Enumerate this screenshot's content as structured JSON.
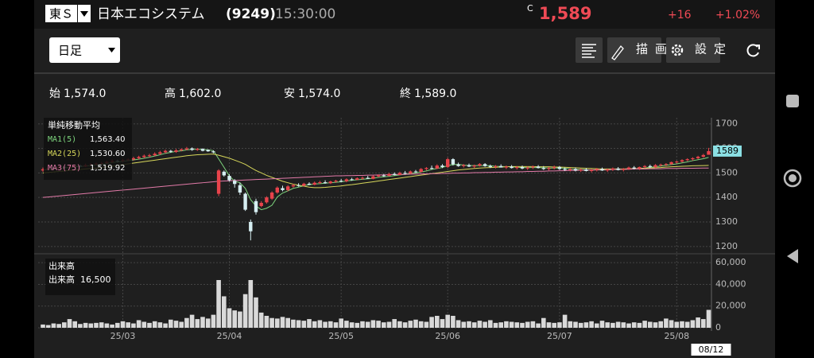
{
  "header": {
    "market": "東Ｓ",
    "name": "日本エコシステム",
    "code": "(9249)",
    "time": "15:30:00",
    "price_flag": "C",
    "price": "1,589",
    "change": "+16",
    "change_pct": "+1.02%"
  },
  "toolbar": {
    "period": "日足",
    "draw": "描画",
    "settings": "設定"
  },
  "summary": [
    {
      "label": "始",
      "value": "1,574.0"
    },
    {
      "label": "高",
      "value": "1,602.0"
    },
    {
      "label": "安",
      "value": "1,574.0"
    },
    {
      "label": "終",
      "value": "1,589.0"
    }
  ],
  "chart_data": [
    {
      "type": "candlestick",
      "legend_title": "単純移動平均",
      "up_color": "#e8434b",
      "down_color": "#d6eef2",
      "categories": [
        null,
        null,
        null,
        null,
        null,
        null,
        null,
        null,
        null,
        null,
        null,
        null,
        null,
        null,
        null,
        "25/03",
        null,
        null,
        null,
        null,
        null,
        null,
        null,
        null,
        null,
        null,
        null,
        null,
        null,
        null,
        null,
        null,
        null,
        null,
        null,
        "25/04",
        null,
        null,
        null,
        null,
        null,
        null,
        null,
        null,
        null,
        null,
        null,
        null,
        null,
        null,
        null,
        null,
        null,
        null,
        null,
        null,
        "25/05",
        null,
        null,
        null,
        null,
        null,
        null,
        null,
        null,
        null,
        null,
        null,
        null,
        null,
        null,
        null,
        null,
        null,
        null,
        null,
        "25/06",
        null,
        null,
        null,
        null,
        null,
        null,
        null,
        null,
        null,
        null,
        null,
        null,
        null,
        null,
        null,
        null,
        null,
        null,
        null,
        null,
        "25/07",
        null,
        null,
        null,
        null,
        null,
        null,
        null,
        null,
        null,
        null,
        null,
        null,
        null,
        null,
        null,
        null,
        null,
        null,
        null,
        null,
        null,
        "25/08",
        null,
        null,
        null,
        null,
        null,
        "08/12"
      ],
      "open": [
        1510,
        1515,
        1520,
        1518,
        1525,
        1522,
        1528,
        1530,
        1526,
        1532,
        1535,
        1538,
        1540,
        1545,
        1550,
        1548,
        1552,
        1555,
        1560,
        1565,
        1570,
        1572,
        1578,
        1584,
        1590,
        1586,
        1592,
        1596,
        1600,
        1594,
        1598,
        1594,
        1588,
        1415,
        1505,
        1488,
        1468,
        1450,
        1415,
        1300,
        1385,
        1365,
        1380,
        1395,
        1420,
        1438,
        1430,
        1445,
        1450,
        1448,
        1456,
        1452,
        1460,
        1462,
        1458,
        1465,
        1468,
        1466,
        1474,
        1472,
        1478,
        1480,
        1476,
        1486,
        1490,
        1488,
        1496,
        1492,
        1500,
        1498,
        1506,
        1504,
        1516,
        1520,
        1518,
        1530,
        1524,
        1556,
        1535,
        1528,
        1532,
        1526,
        1530,
        1536,
        1528,
        1524,
        1528,
        1522,
        1526,
        1520,
        1524,
        1518,
        1522,
        1526,
        1520,
        1516,
        1520,
        1524,
        1516,
        1512,
        1516,
        1510,
        1514,
        1508,
        1512,
        1516,
        1510,
        1514,
        1518,
        1512,
        1516,
        1522,
        1518,
        1524,
        1528,
        1524,
        1532,
        1534,
        1536,
        1544,
        1546,
        1552,
        1556,
        1560,
        1566,
        1574
      ],
      "high": [
        1522,
        1525,
        1524,
        1530,
        1528,
        1532,
        1535,
        1534,
        1538,
        1540,
        1542,
        1545,
        1550,
        1556,
        1554,
        1558,
        1560,
        1566,
        1570,
        1575,
        1578,
        1584,
        1590,
        1595,
        1594,
        1598,
        1600,
        1606,
        1604,
        1602,
        1600,
        1596,
        1592,
        1515,
        1510,
        1495,
        1475,
        1460,
        1420,
        1310,
        1395,
        1385,
        1405,
        1425,
        1445,
        1448,
        1450,
        1455,
        1458,
        1460,
        1462,
        1465,
        1468,
        1470,
        1468,
        1472,
        1475,
        1478,
        1480,
        1482,
        1485,
        1488,
        1490,
        1494,
        1496,
        1500,
        1502,
        1505,
        1508,
        1510,
        1512,
        1520,
        1524,
        1530,
        1535,
        1536,
        1562,
        1560,
        1542,
        1536,
        1538,
        1534,
        1540,
        1540,
        1534,
        1532,
        1535,
        1530,
        1532,
        1528,
        1530,
        1526,
        1530,
        1532,
        1528,
        1524,
        1530,
        1528,
        1522,
        1520,
        1522,
        1518,
        1520,
        1516,
        1520,
        1522,
        1518,
        1522,
        1524,
        1520,
        1526,
        1528,
        1526,
        1532,
        1534,
        1536,
        1538,
        1540,
        1546,
        1550,
        1556,
        1560,
        1564,
        1570,
        1578,
        1602
      ],
      "low": [
        1505,
        1512,
        1512,
        1515,
        1518,
        1520,
        1524,
        1522,
        1524,
        1528,
        1530,
        1534,
        1536,
        1540,
        1542,
        1544,
        1548,
        1550,
        1555,
        1560,
        1564,
        1568,
        1574,
        1580,
        1582,
        1582,
        1588,
        1592,
        1590,
        1590,
        1588,
        1586,
        1580,
        1405,
        1485,
        1465,
        1440,
        1410,
        1345,
        1225,
        1330,
        1360,
        1375,
        1390,
        1415,
        1425,
        1425,
        1440,
        1444,
        1445,
        1450,
        1450,
        1455,
        1456,
        1455,
        1460,
        1462,
        1462,
        1468,
        1470,
        1472,
        1476,
        1474,
        1482,
        1484,
        1486,
        1490,
        1490,
        1494,
        1495,
        1500,
        1502,
        1510,
        1514,
        1516,
        1520,
        1520,
        1530,
        1525,
        1522,
        1524,
        1520,
        1526,
        1525,
        1520,
        1518,
        1522,
        1516,
        1518,
        1514,
        1515,
        1512,
        1516,
        1518,
        1512,
        1510,
        1514,
        1512,
        1508,
        1506,
        1506,
        1504,
        1506,
        1502,
        1506,
        1508,
        1504,
        1508,
        1510,
        1506,
        1512,
        1514,
        1512,
        1518,
        1520,
        1520,
        1526,
        1528,
        1532,
        1538,
        1542,
        1548,
        1550,
        1556,
        1562,
        1574
      ],
      "close": [
        1515,
        1520,
        1518,
        1525,
        1522,
        1528,
        1530,
        1526,
        1532,
        1535,
        1538,
        1540,
        1545,
        1550,
        1548,
        1552,
        1555,
        1560,
        1565,
        1570,
        1572,
        1578,
        1584,
        1590,
        1586,
        1592,
        1596,
        1600,
        1594,
        1598,
        1590,
        1588,
        1584,
        1510,
        1490,
        1470,
        1455,
        1420,
        1350,
        1262,
        1340,
        1378,
        1400,
        1420,
        1440,
        1430,
        1445,
        1450,
        1448,
        1456,
        1452,
        1460,
        1462,
        1458,
        1465,
        1468,
        1466,
        1474,
        1472,
        1478,
        1480,
        1476,
        1486,
        1490,
        1488,
        1496,
        1492,
        1500,
        1498,
        1506,
        1504,
        1516,
        1520,
        1518,
        1530,
        1524,
        1556,
        1535,
        1528,
        1532,
        1526,
        1530,
        1536,
        1528,
        1524,
        1528,
        1522,
        1526,
        1520,
        1524,
        1518,
        1522,
        1526,
        1520,
        1516,
        1520,
        1524,
        1516,
        1512,
        1516,
        1510,
        1514,
        1508,
        1512,
        1516,
        1510,
        1514,
        1518,
        1512,
        1516,
        1522,
        1518,
        1524,
        1528,
        1524,
        1532,
        1534,
        1536,
        1544,
        1546,
        1552,
        1556,
        1560,
        1566,
        1573,
        1589
      ],
      "series": [
        {
          "name": "MA1(5)",
          "color": "#7ed67e",
          "value_label": "1,563.40",
          "values": [
            1512,
            1514,
            1516,
            1519,
            1520,
            1523,
            1525,
            1526,
            1528,
            1530,
            1532,
            1535,
            1538,
            1542,
            1544,
            1547,
            1550,
            1553,
            1556,
            1560,
            1564,
            1569,
            1574,
            1580,
            1584,
            1588,
            1590,
            1594,
            1596,
            1597,
            1596,
            1594,
            1591,
            1557,
            1523,
            1488,
            1466,
            1460,
            1437,
            1391,
            1365,
            1350,
            1356,
            1368,
            1402,
            1418,
            1427,
            1437,
            1442,
            1448,
            1452,
            1455,
            1456,
            1458,
            1460,
            1462,
            1464,
            1467,
            1470,
            1472,
            1474,
            1476,
            1478,
            1482,
            1484,
            1486,
            1489,
            1492,
            1494,
            1498,
            1500,
            1504,
            1508,
            1514,
            1518,
            1522,
            1530,
            1534,
            1535,
            1532,
            1530,
            1530,
            1530,
            1530,
            1529,
            1527,
            1526,
            1526,
            1525,
            1523,
            1522,
            1522,
            1522,
            1522,
            1521,
            1520,
            1520,
            1521,
            1519,
            1516,
            1514,
            1514,
            1513,
            1512,
            1512,
            1512,
            1512,
            1514,
            1514,
            1514,
            1516,
            1517,
            1518,
            1520,
            1523,
            1525,
            1528,
            1531,
            1534,
            1537,
            1541,
            1545,
            1550,
            1554,
            1558,
            1563.4
          ]
        },
        {
          "name": "MA2(25)",
          "color": "#d6d65a",
          "value_label": "1,530.60",
          "values": [
            1500,
            1502,
            1504,
            1506,
            1508,
            1510,
            1512,
            1514,
            1516,
            1518,
            1520,
            1522,
            1525,
            1528,
            1531,
            1534,
            1537,
            1540,
            1543,
            1546,
            1549,
            1552,
            1555,
            1558,
            1561,
            1564,
            1567,
            1570,
            1572,
            1574,
            1575,
            1576,
            1577,
            1572,
            1566,
            1560,
            1552,
            1544,
            1535,
            1522,
            1510,
            1500,
            1490,
            1482,
            1474,
            1466,
            1460,
            1454,
            1450,
            1446,
            1442,
            1440,
            1440,
            1441,
            1443,
            1445,
            1447,
            1450,
            1452,
            1455,
            1458,
            1461,
            1464,
            1467,
            1470,
            1473,
            1476,
            1479,
            1482,
            1485,
            1488,
            1491,
            1494,
            1497,
            1500,
            1503,
            1506,
            1509,
            1512,
            1514,
            1516,
            1518,
            1520,
            1521,
            1522,
            1523,
            1524,
            1525,
            1526,
            1526,
            1526,
            1526,
            1526,
            1525,
            1525,
            1525,
            1524,
            1524,
            1523,
            1522,
            1521,
            1520,
            1519,
            1518,
            1517,
            1516,
            1516,
            1516,
            1516,
            1516,
            1517,
            1517,
            1518,
            1519,
            1520,
            1521,
            1522,
            1524,
            1525,
            1526,
            1527,
            1528,
            1529,
            1529.5,
            1530,
            1530.6
          ]
        },
        {
          "name": "MA3(75)",
          "color": "#e27aa8",
          "value_label": "1,519.92",
          "values": [
            1400,
            1402,
            1404,
            1406,
            1408,
            1410,
            1412,
            1414,
            1416,
            1418,
            1420,
            1422,
            1424,
            1426,
            1428,
            1430,
            1432,
            1434,
            1436,
            1438,
            1440,
            1442,
            1444,
            1446,
            1448,
            1450,
            1452,
            1454,
            1456,
            1458,
            1460,
            1462,
            1464,
            1466,
            1467,
            1468,
            1469,
            1470,
            1471,
            1472,
            1473,
            1474,
            1475,
            1476,
            1477,
            1478,
            1479,
            1480,
            1481,
            1482,
            1483,
            1484,
            1485,
            1486,
            1487,
            1488,
            1488,
            1489,
            1489,
            1490,
            1490,
            1491,
            1491,
            1492,
            1492,
            1493,
            1493,
            1494,
            1494,
            1495,
            1495,
            1496,
            1496,
            1497,
            1497,
            1498,
            1498,
            1499,
            1499,
            1500,
            1500,
            1501,
            1501,
            1502,
            1502,
            1503,
            1503,
            1504,
            1504,
            1505,
            1505,
            1506,
            1506,
            1507,
            1507,
            1508,
            1508,
            1509,
            1509,
            1510,
            1510,
            1511,
            1511,
            1512,
            1512,
            1513,
            1513,
            1514,
            1514,
            1515,
            1515,
            1516,
            1516,
            1516,
            1517,
            1517,
            1517,
            1518,
            1518,
            1518,
            1519,
            1519,
            1519,
            1519.5,
            1519.7,
            1519.92
          ]
        }
      ],
      "ylim": [
        1180,
        1725
      ],
      "yticks": [
        1200,
        1300,
        1400,
        1500,
        1600,
        1700
      ],
      "grid": true
    },
    {
      "type": "bar",
      "legend_title": "出来高",
      "series": [
        {
          "name": "出来高",
          "color": "#d9d9d9",
          "value_label": "16,500",
          "values": [
            3000,
            2500,
            4000,
            3500,
            5000,
            8000,
            6000,
            3500,
            4500,
            4000,
            4500,
            5000,
            4000,
            3000,
            4500,
            6000,
            5000,
            4000,
            7000,
            5500,
            4500,
            6000,
            5000,
            4000,
            7500,
            6500,
            5500,
            9000,
            12000,
            8000,
            10000,
            8500,
            12000,
            44000,
            29000,
            18000,
            16000,
            15000,
            31000,
            44000,
            28000,
            14000,
            11000,
            9000,
            8500,
            10000,
            9000,
            7500,
            7000,
            6500,
            8000,
            6000,
            7000,
            5500,
            6000,
            5000,
            8500,
            6500,
            5000,
            4500,
            6000,
            5500,
            7000,
            6500,
            5000,
            5500,
            8000,
            6000,
            5000,
            6500,
            7500,
            6000,
            5500,
            10000,
            11000,
            8000,
            12000,
            11000,
            7000,
            5500,
            6000,
            5000,
            6500,
            5500,
            7000,
            4500,
            5000,
            6000,
            5500,
            5000,
            4500,
            5500,
            6000,
            4000,
            9000,
            5000,
            4500,
            5000,
            12000,
            6000,
            5500,
            4500,
            5000,
            6000,
            4000,
            6500,
            5000,
            4500,
            5500,
            5000,
            4000,
            5000,
            4500,
            6500,
            5500,
            5000,
            6000,
            8500,
            7000,
            5500,
            6000,
            5500,
            7000,
            9500,
            8000,
            16500
          ]
        }
      ],
      "ylim": [
        0,
        66000
      ],
      "yticks": [
        0,
        {
          "value": 20000,
          "label": "20,000"
        },
        {
          "value": 40000,
          "label": "40,000"
        },
        {
          "value": 60000,
          "label": "60,000"
        }
      ],
      "grid": true
    }
  ]
}
